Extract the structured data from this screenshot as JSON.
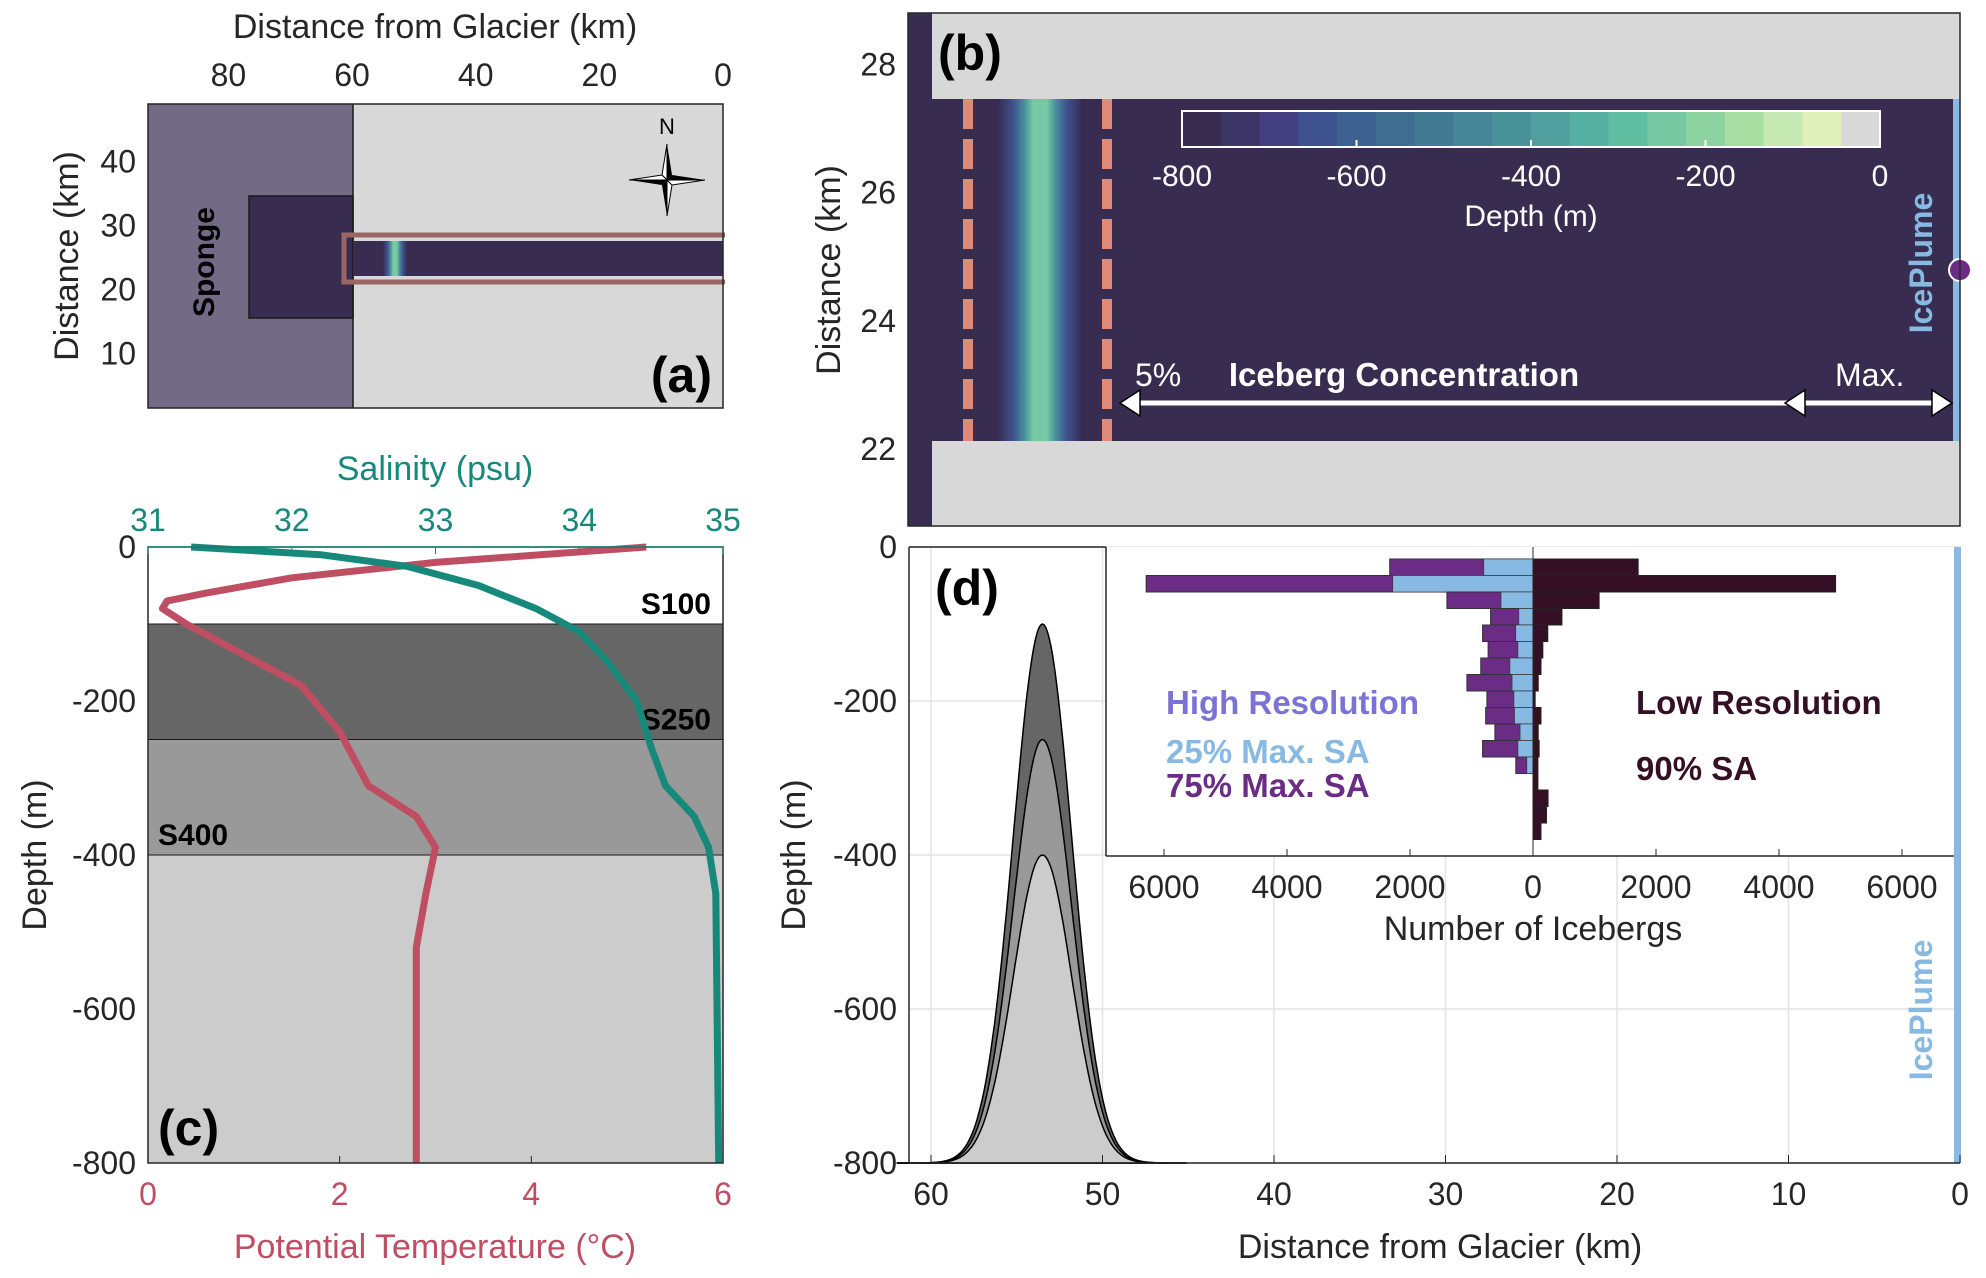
{
  "chart_data": [
    {
      "panel": "a",
      "type": "heatmap",
      "panel_label": "(a)",
      "xlabel": "Distance from Glacier (km)",
      "ylabel": "Distance (km)",
      "xticks": [
        80,
        60,
        40,
        20,
        0
      ],
      "yticks": [
        10,
        20,
        30,
        40
      ],
      "xlim": [
        93,
        0
      ],
      "ylim": [
        1.5,
        49
      ],
      "sponge_label": "Sponge",
      "sponge_region": {
        "x_from": 93,
        "x_to": 60
      },
      "inner_basin": {
        "x_from": 75,
        "x_to": 60,
        "y_from": 15.5,
        "y_to": 34.5
      },
      "fjord_channel": {
        "x_from": 60,
        "x_to": 0,
        "y_from": 22,
        "y_to": 28
      },
      "highlight_box": {
        "x_from": 61.5,
        "x_to": 0,
        "y_from": 21,
        "y_to": 29
      },
      "sill_x": 53.5,
      "compass_label": "N",
      "colors": {
        "sponge": "#736a86",
        "land": "#d8d8d8",
        "water": "#382d51",
        "highlight": "#9b6565"
      }
    },
    {
      "panel": "b",
      "type": "heatmap",
      "panel_label": "(b)",
      "ylabel": "Distance (km)",
      "yticks": [
        22,
        24,
        26,
        28
      ],
      "ylim": [
        20.8,
        28.8
      ],
      "channel": {
        "y_from": 22.2,
        "y_to": 27.4
      },
      "sill_center_x": 53.5,
      "dashed_lines_x": [
        57.7,
        49.7
      ],
      "colorbar": {
        "label": "Depth (m)",
        "ticks": [
          -800,
          -600,
          -400,
          -200,
          0
        ],
        "range": [
          -800,
          0
        ],
        "colors": [
          "#382d51",
          "#3c3565",
          "#433f80",
          "#3f5290",
          "#3d6191",
          "#3e6d90",
          "#417a92",
          "#458798",
          "#4a929a",
          "#51a09f",
          "#56b0a2",
          "#5fbe9f",
          "#77c9a4",
          "#8dd39f",
          "#a9dea2",
          "#c6e8b2",
          "#dff0bb",
          "#d8d8d8"
        ]
      },
      "annotation_concentration": "Iceberg Concentration",
      "annotation_low": "5%",
      "annotation_high": "Max.",
      "plume_label": "IcePlume",
      "plume_y_km": 24.8,
      "colors": {
        "water": "#382d51",
        "land": "#d8d8d8",
        "dash": "#df8a78",
        "plume": "#87b9e3",
        "plume_dot": "#6a2c84"
      }
    },
    {
      "panel": "c",
      "type": "line",
      "panel_label": "(c)",
      "xlabel": "Potential Temperature (°C)",
      "x2label": "Salinity (psu)",
      "ylabel": "Depth (m)",
      "xlim": [
        0,
        6
      ],
      "x2lim": [
        31,
        35
      ],
      "ylim": [
        -800,
        0
      ],
      "xticks": [
        0,
        2,
        4,
        6
      ],
      "x2ticks": [
        31,
        32,
        33,
        34,
        35
      ],
      "yticks": [
        0,
        -200,
        -400,
        -600,
        -800
      ],
      "series": [
        {
          "name": "Potential Temperature",
          "color": "#bf4e63",
          "axis": "x",
          "points": [
            [
              5.2,
              0
            ],
            [
              3.0,
              -20
            ],
            [
              1.5,
              -40
            ],
            [
              0.6,
              -60
            ],
            [
              0.2,
              -70
            ],
            [
              0.15,
              -80
            ],
            [
              0.4,
              -100
            ],
            [
              1.0,
              -140
            ],
            [
              1.6,
              -180
            ],
            [
              2.0,
              -240
            ],
            [
              2.3,
              -310
            ],
            [
              2.8,
              -350
            ],
            [
              3.0,
              -390
            ],
            [
              2.9,
              -450
            ],
            [
              2.8,
              -520
            ],
            [
              2.8,
              -800
            ]
          ]
        },
        {
          "name": "Salinity",
          "color": "#17897a",
          "axis": "x2",
          "points": [
            [
              31.3,
              0
            ],
            [
              32.2,
              -10
            ],
            [
              32.8,
              -25
            ],
            [
              33.3,
              -50
            ],
            [
              33.7,
              -80
            ],
            [
              34.0,
              -110
            ],
            [
              34.2,
              -150
            ],
            [
              34.4,
              -200
            ],
            [
              34.5,
              -260
            ],
            [
              34.6,
              -310
            ],
            [
              34.8,
              -350
            ],
            [
              34.9,
              -390
            ],
            [
              34.95,
              -450
            ],
            [
              34.97,
              -800
            ]
          ]
        }
      ],
      "sill_bands": [
        {
          "label": "S100",
          "from": -100,
          "to": -250,
          "color": "#666666"
        },
        {
          "label": "S250",
          "from": -250,
          "to": -400,
          "color": "#999999"
        },
        {
          "label": "S400",
          "from": -400,
          "to": -800,
          "color": "#cccccc"
        }
      ]
    },
    {
      "panel": "d",
      "type": "area",
      "panel_label": "(d)",
      "xlabel": "Distance from Glacier (km)",
      "ylabel": "Depth (m)",
      "xlim": [
        61,
        0
      ],
      "ylim": [
        -800,
        0
      ],
      "xticks": [
        60,
        50,
        40,
        30,
        20,
        10,
        0
      ],
      "yticks": [
        0,
        -200,
        -400,
        -600,
        -800
      ],
      "grid": true,
      "sills": [
        {
          "name": "S100",
          "crest_depth": -100,
          "center_km": 53.5,
          "color": "#666666"
        },
        {
          "name": "S250",
          "crest_depth": -250,
          "center_km": 53.5,
          "color": "#999999"
        },
        {
          "name": "S400",
          "crest_depth": -400,
          "center_km": 53.5,
          "color": "#cccccc"
        }
      ],
      "plume_label": "IcePlume",
      "inset": {
        "type": "bar",
        "orientation": "horizontal",
        "xlabel": "Number of Icebergs",
        "xticks": [
          6000,
          4000,
          2000,
          0,
          2000,
          4000,
          6000
        ],
        "xlim": [
          -7200,
          7000
        ],
        "depth_bins_m": [
          -20,
          -40,
          -60,
          -80,
          -100,
          -120,
          -140,
          -160,
          -180,
          -200,
          -220,
          -240,
          -260,
          -280,
          -300,
          -320,
          -340
        ],
        "series": [
          {
            "name": "75% Max. SA",
            "group": "High Resolution",
            "side": "left",
            "color": "#6a2c84",
            "values": [
              2330,
              6290,
              1400,
              690,
              820,
              730,
              850,
              1075,
              750,
              770,
              620,
              820,
              280,
              0,
              0,
              0,
              0
            ]
          },
          {
            "name": "25% Max. SA",
            "group": "High Resolution",
            "side": "left",
            "color": "#87b9e3",
            "values": [
              800,
              2280,
              520,
              230,
              280,
              245,
              375,
              340,
              310,
              300,
              210,
              245,
              100,
              0,
              0,
              0,
              0
            ]
          },
          {
            "name": "90% SA",
            "group": "Low Resolution",
            "side": "right",
            "color": "#351025",
            "values": [
              1710,
              4920,
              1075,
              470,
              240,
              160,
              130,
              85,
              35,
              130,
              85,
              100,
              80,
              80,
              245,
              220,
              130
            ]
          }
        ],
        "legend": {
          "high_title": "High Resolution",
          "high_25": "25% Max. SA",
          "high_75": "75% Max. SA",
          "low_title": "Low Resolution",
          "low_90": "90% SA",
          "high_title_color": "#7b72d6"
        }
      }
    }
  ]
}
